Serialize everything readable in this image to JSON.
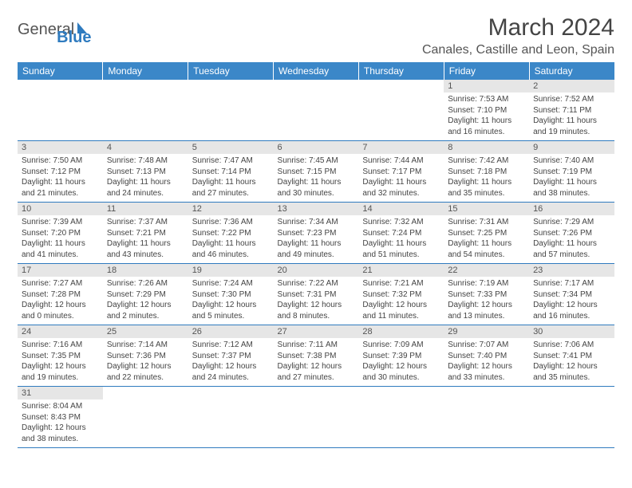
{
  "logo": {
    "text_general": "General",
    "text_blue": "Blue"
  },
  "header": {
    "title": "March 2024",
    "subtitle": "Canales, Castille and Leon, Spain"
  },
  "colors": {
    "header_bg": "#3b87c8",
    "header_text": "#ffffff",
    "day_shade": "#e6e6e6",
    "border": "#2f7bbf",
    "body_text": "#444444",
    "logo_gray": "#555555",
    "logo_blue": "#2f7bbf"
  },
  "weekdays": [
    "Sunday",
    "Monday",
    "Tuesday",
    "Wednesday",
    "Thursday",
    "Friday",
    "Saturday"
  ],
  "grid": [
    [
      {
        "empty": true
      },
      {
        "empty": true
      },
      {
        "empty": true
      },
      {
        "empty": true
      },
      {
        "empty": true
      },
      {
        "day": "1",
        "sunrise": "Sunrise: 7:53 AM",
        "sunset": "Sunset: 7:10 PM",
        "daylight": "Daylight: 11 hours and 16 minutes."
      },
      {
        "day": "2",
        "sunrise": "Sunrise: 7:52 AM",
        "sunset": "Sunset: 7:11 PM",
        "daylight": "Daylight: 11 hours and 19 minutes."
      }
    ],
    [
      {
        "day": "3",
        "sunrise": "Sunrise: 7:50 AM",
        "sunset": "Sunset: 7:12 PM",
        "daylight": "Daylight: 11 hours and 21 minutes."
      },
      {
        "day": "4",
        "sunrise": "Sunrise: 7:48 AM",
        "sunset": "Sunset: 7:13 PM",
        "daylight": "Daylight: 11 hours and 24 minutes."
      },
      {
        "day": "5",
        "sunrise": "Sunrise: 7:47 AM",
        "sunset": "Sunset: 7:14 PM",
        "daylight": "Daylight: 11 hours and 27 minutes."
      },
      {
        "day": "6",
        "sunrise": "Sunrise: 7:45 AM",
        "sunset": "Sunset: 7:15 PM",
        "daylight": "Daylight: 11 hours and 30 minutes."
      },
      {
        "day": "7",
        "sunrise": "Sunrise: 7:44 AM",
        "sunset": "Sunset: 7:17 PM",
        "daylight": "Daylight: 11 hours and 32 minutes."
      },
      {
        "day": "8",
        "sunrise": "Sunrise: 7:42 AM",
        "sunset": "Sunset: 7:18 PM",
        "daylight": "Daylight: 11 hours and 35 minutes."
      },
      {
        "day": "9",
        "sunrise": "Sunrise: 7:40 AM",
        "sunset": "Sunset: 7:19 PM",
        "daylight": "Daylight: 11 hours and 38 minutes."
      }
    ],
    [
      {
        "day": "10",
        "sunrise": "Sunrise: 7:39 AM",
        "sunset": "Sunset: 7:20 PM",
        "daylight": "Daylight: 11 hours and 41 minutes."
      },
      {
        "day": "11",
        "sunrise": "Sunrise: 7:37 AM",
        "sunset": "Sunset: 7:21 PM",
        "daylight": "Daylight: 11 hours and 43 minutes."
      },
      {
        "day": "12",
        "sunrise": "Sunrise: 7:36 AM",
        "sunset": "Sunset: 7:22 PM",
        "daylight": "Daylight: 11 hours and 46 minutes."
      },
      {
        "day": "13",
        "sunrise": "Sunrise: 7:34 AM",
        "sunset": "Sunset: 7:23 PM",
        "daylight": "Daylight: 11 hours and 49 minutes."
      },
      {
        "day": "14",
        "sunrise": "Sunrise: 7:32 AM",
        "sunset": "Sunset: 7:24 PM",
        "daylight": "Daylight: 11 hours and 51 minutes."
      },
      {
        "day": "15",
        "sunrise": "Sunrise: 7:31 AM",
        "sunset": "Sunset: 7:25 PM",
        "daylight": "Daylight: 11 hours and 54 minutes."
      },
      {
        "day": "16",
        "sunrise": "Sunrise: 7:29 AM",
        "sunset": "Sunset: 7:26 PM",
        "daylight": "Daylight: 11 hours and 57 minutes."
      }
    ],
    [
      {
        "day": "17",
        "sunrise": "Sunrise: 7:27 AM",
        "sunset": "Sunset: 7:28 PM",
        "daylight": "Daylight: 12 hours and 0 minutes."
      },
      {
        "day": "18",
        "sunrise": "Sunrise: 7:26 AM",
        "sunset": "Sunset: 7:29 PM",
        "daylight": "Daylight: 12 hours and 2 minutes."
      },
      {
        "day": "19",
        "sunrise": "Sunrise: 7:24 AM",
        "sunset": "Sunset: 7:30 PM",
        "daylight": "Daylight: 12 hours and 5 minutes."
      },
      {
        "day": "20",
        "sunrise": "Sunrise: 7:22 AM",
        "sunset": "Sunset: 7:31 PM",
        "daylight": "Daylight: 12 hours and 8 minutes."
      },
      {
        "day": "21",
        "sunrise": "Sunrise: 7:21 AM",
        "sunset": "Sunset: 7:32 PM",
        "daylight": "Daylight: 12 hours and 11 minutes."
      },
      {
        "day": "22",
        "sunrise": "Sunrise: 7:19 AM",
        "sunset": "Sunset: 7:33 PM",
        "daylight": "Daylight: 12 hours and 13 minutes."
      },
      {
        "day": "23",
        "sunrise": "Sunrise: 7:17 AM",
        "sunset": "Sunset: 7:34 PM",
        "daylight": "Daylight: 12 hours and 16 minutes."
      }
    ],
    [
      {
        "day": "24",
        "sunrise": "Sunrise: 7:16 AM",
        "sunset": "Sunset: 7:35 PM",
        "daylight": "Daylight: 12 hours and 19 minutes."
      },
      {
        "day": "25",
        "sunrise": "Sunrise: 7:14 AM",
        "sunset": "Sunset: 7:36 PM",
        "daylight": "Daylight: 12 hours and 22 minutes."
      },
      {
        "day": "26",
        "sunrise": "Sunrise: 7:12 AM",
        "sunset": "Sunset: 7:37 PM",
        "daylight": "Daylight: 12 hours and 24 minutes."
      },
      {
        "day": "27",
        "sunrise": "Sunrise: 7:11 AM",
        "sunset": "Sunset: 7:38 PM",
        "daylight": "Daylight: 12 hours and 27 minutes."
      },
      {
        "day": "28",
        "sunrise": "Sunrise: 7:09 AM",
        "sunset": "Sunset: 7:39 PM",
        "daylight": "Daylight: 12 hours and 30 minutes."
      },
      {
        "day": "29",
        "sunrise": "Sunrise: 7:07 AM",
        "sunset": "Sunset: 7:40 PM",
        "daylight": "Daylight: 12 hours and 33 minutes."
      },
      {
        "day": "30",
        "sunrise": "Sunrise: 7:06 AM",
        "sunset": "Sunset: 7:41 PM",
        "daylight": "Daylight: 12 hours and 35 minutes."
      }
    ],
    [
      {
        "day": "31",
        "sunrise": "Sunrise: 8:04 AM",
        "sunset": "Sunset: 8:43 PM",
        "daylight": "Daylight: 12 hours and 38 minutes."
      },
      {
        "empty": true
      },
      {
        "empty": true
      },
      {
        "empty": true
      },
      {
        "empty": true
      },
      {
        "empty": true
      },
      {
        "empty": true
      }
    ]
  ]
}
